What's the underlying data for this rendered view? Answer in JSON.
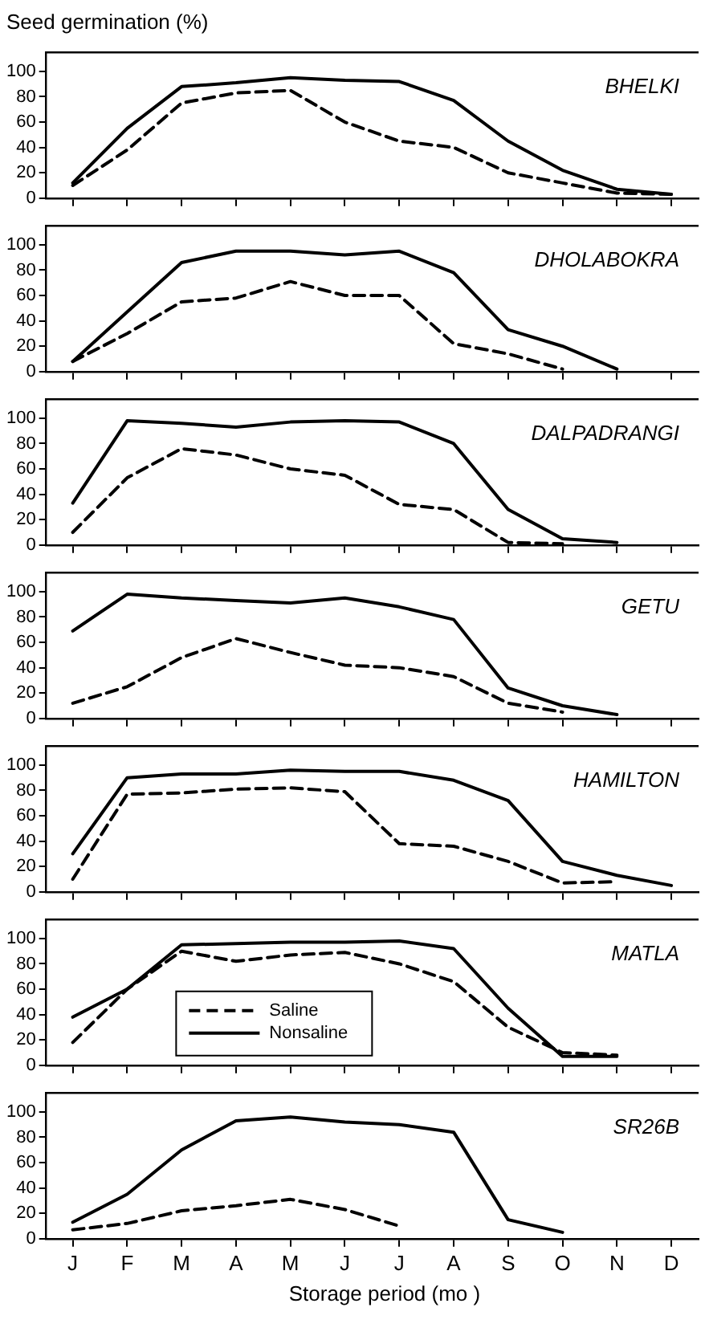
{
  "chart_data": [
    {
      "type": "line",
      "title": "BHELKI",
      "ylabel": "Seed germination (%)",
      "categories": [
        null,
        null,
        null,
        null,
        null,
        null,
        null,
        null,
        null,
        null,
        null,
        null
      ],
      "ylim": [
        0,
        115
      ],
      "yticks": [
        0,
        20,
        40,
        60,
        80,
        100
      ],
      "tick_labels": "y",
      "series": [
        {
          "color": "#000000",
          "line_style": "dashed",
          "values": [
            10,
            38,
            75,
            83,
            85,
            60,
            45,
            40,
            20,
            12,
            4,
            3
          ]
        },
        {
          "color": "#000000",
          "line_style": "solid",
          "values": [
            12,
            55,
            88,
            91,
            95,
            93,
            92,
            77,
            45,
            22,
            7,
            3
          ]
        }
      ]
    },
    {
      "type": "line",
      "title": "DHOLABOKRA",
      "categories": [
        null,
        null,
        null,
        null,
        null,
        null,
        null,
        null,
        null,
        null,
        null,
        null
      ],
      "ylim": [
        0,
        115
      ],
      "yticks": [
        0,
        20,
        40,
        60,
        80,
        100
      ],
      "tick_labels": "y",
      "series": [
        {
          "color": "#000000",
          "line_style": "dashed",
          "values": [
            8,
            30,
            55,
            58,
            71,
            60,
            60,
            22,
            14,
            2,
            null,
            null
          ]
        },
        {
          "color": "#000000",
          "line_style": "solid",
          "values": [
            8,
            47,
            86,
            95,
            95,
            92,
            95,
            78,
            33,
            20,
            2,
            null
          ]
        }
      ]
    },
    {
      "type": "line",
      "title": "DALPADRANGI",
      "categories": [
        null,
        null,
        null,
        null,
        null,
        null,
        null,
        null,
        null,
        null,
        null,
        null
      ],
      "ylim": [
        0,
        115
      ],
      "yticks": [
        0,
        20,
        40,
        60,
        80,
        100
      ],
      "tick_labels": "y",
      "series": [
        {
          "color": "#000000",
          "line_style": "dashed",
          "values": [
            10,
            53,
            76,
            71,
            60,
            55,
            32,
            28,
            2,
            1,
            null,
            null
          ]
        },
        {
          "color": "#000000",
          "line_style": "solid",
          "values": [
            33,
            98,
            96,
            93,
            97,
            98,
            97,
            80,
            28,
            5,
            2,
            null
          ]
        }
      ]
    },
    {
      "type": "line",
      "title": "GETU",
      "categories": [
        null,
        null,
        null,
        null,
        null,
        null,
        null,
        null,
        null,
        null,
        null,
        null
      ],
      "ylim": [
        0,
        115
      ],
      "yticks": [
        0,
        20,
        40,
        60,
        80,
        100
      ],
      "tick_labels": "y",
      "series": [
        {
          "color": "#000000",
          "line_style": "dashed",
          "values": [
            12,
            25,
            48,
            63,
            52,
            42,
            40,
            33,
            12,
            5,
            null,
            null
          ]
        },
        {
          "color": "#000000",
          "line_style": "solid",
          "values": [
            69,
            98,
            95,
            93,
            91,
            95,
            88,
            78,
            24,
            10,
            3,
            null
          ]
        }
      ]
    },
    {
      "type": "line",
      "title": "HAMILTON",
      "categories": [
        null,
        null,
        null,
        null,
        null,
        null,
        null,
        null,
        null,
        null,
        null,
        null
      ],
      "ylim": [
        0,
        115
      ],
      "yticks": [
        0,
        20,
        40,
        60,
        80,
        100
      ],
      "tick_labels": "y",
      "series": [
        {
          "color": "#000000",
          "line_style": "dashed",
          "values": [
            10,
            77,
            78,
            81,
            82,
            79,
            38,
            36,
            24,
            7,
            8,
            null
          ]
        },
        {
          "color": "#000000",
          "line_style": "solid",
          "values": [
            30,
            90,
            93,
            93,
            96,
            95,
            95,
            88,
            72,
            24,
            13,
            5
          ]
        }
      ]
    },
    {
      "type": "line",
      "title": "MATLA",
      "categories": [
        null,
        null,
        null,
        null,
        null,
        null,
        null,
        null,
        null,
        null,
        null,
        null
      ],
      "ylim": [
        0,
        115
      ],
      "yticks": [
        0,
        20,
        40,
        60,
        80,
        100
      ],
      "tick_labels": "y",
      "legend": "bottom left",
      "series": [
        {
          "name": "Saline",
          "color": "#000000",
          "line_style": "dashed",
          "values": [
            18,
            60,
            90,
            82,
            87,
            89,
            80,
            66,
            30,
            10,
            8,
            null
          ]
        },
        {
          "name": "Nonsaline",
          "color": "#000000",
          "line_style": "solid",
          "values": [
            38,
            60,
            95,
            96,
            97,
            97,
            98,
            92,
            45,
            7,
            7,
            null
          ]
        }
      ]
    },
    {
      "type": "line",
      "title": "SR26B",
      "xlabel": "Storage period (mo )",
      "categories": [
        "J",
        "F",
        "M",
        "A",
        "M",
        "J",
        "J",
        "A",
        "S",
        "O",
        "N",
        "D"
      ],
      "ylim": [
        0,
        115
      ],
      "yticks": [
        0,
        20,
        40,
        60,
        80,
        100
      ],
      "series": [
        {
          "color": "#000000",
          "line_style": "dashed",
          "values": [
            7,
            12,
            22,
            26,
            31,
            23,
            10,
            null,
            null,
            null,
            null,
            null
          ]
        },
        {
          "color": "#000000",
          "line_style": "solid",
          "values": [
            13,
            35,
            70,
            93,
            96,
            92,
            90,
            84,
            15,
            5,
            null,
            null
          ]
        }
      ]
    }
  ]
}
